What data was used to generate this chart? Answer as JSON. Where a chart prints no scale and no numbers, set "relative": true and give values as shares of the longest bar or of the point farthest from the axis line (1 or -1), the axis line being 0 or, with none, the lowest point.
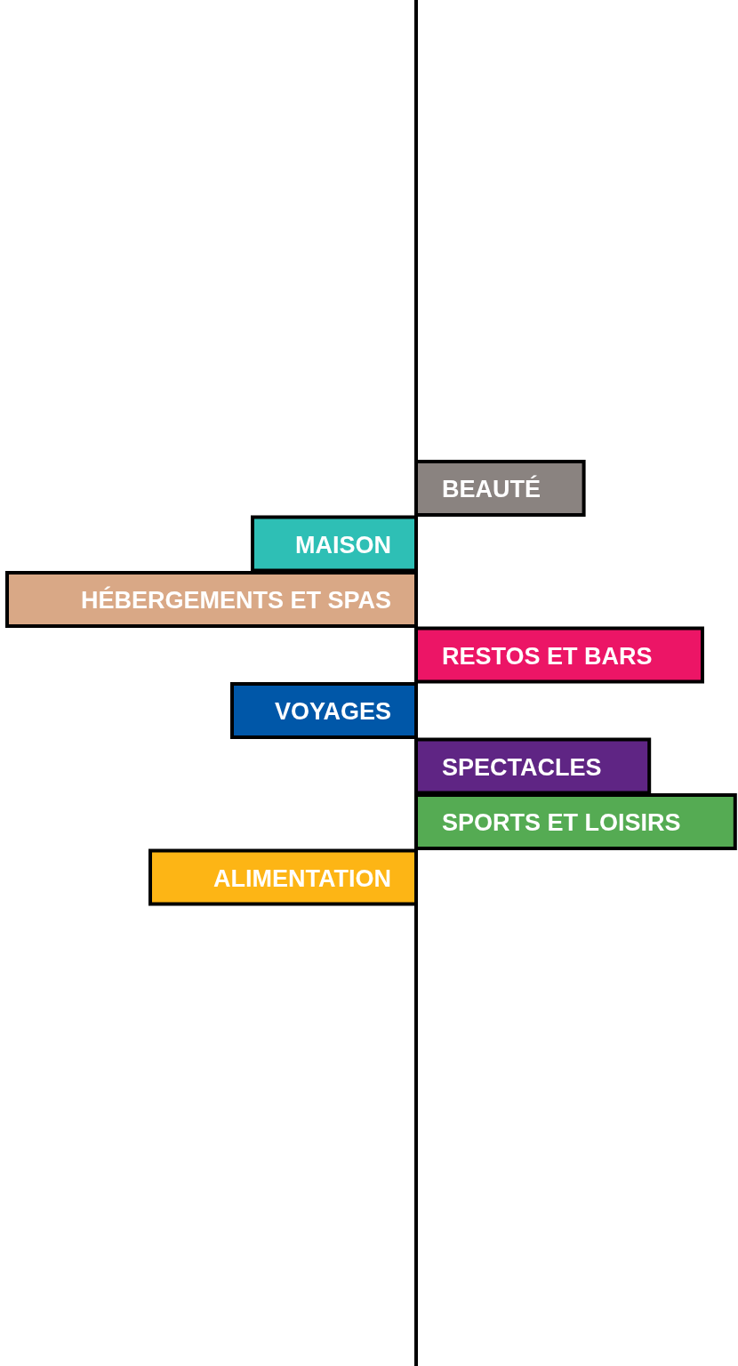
{
  "chart_data": {
    "type": "bar",
    "orientation": "horizontal",
    "relative": true,
    "categories": [
      "BEAUTÉ",
      "MAISON",
      "HÉBERGEMENTS ET SPAS",
      "RESTOS ET BARS",
      "VOYAGES",
      "SPECTACLES",
      "SPORTS ET LOISIRS",
      "ALIMENTATION"
    ],
    "values": [
      0.41,
      -0.4,
      -1,
      0.7,
      -0.45,
      0.57,
      0.78,
      -0.65
    ],
    "colors": [
      "#8a8380",
      "#2ebfb5",
      "#d9a886",
      "#ec1566",
      "#0057a8",
      "#5f2584",
      "#55ab53",
      "#fdb515"
    ]
  }
}
